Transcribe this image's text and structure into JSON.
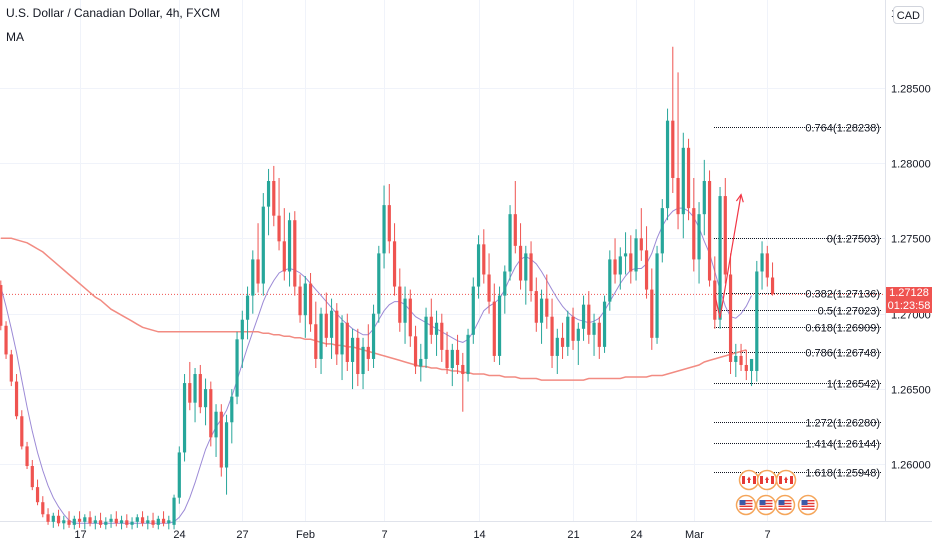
{
  "header": {
    "title": "U.S. Dollar / Canadian Dollar, 4h, FXCM",
    "indicator": "MA",
    "currency": "CAD"
  },
  "current_price": {
    "value": "1.27128",
    "countdown": "01:23:58",
    "color": "#ef5350"
  },
  "colors": {
    "up": "#26a69a",
    "down": "#ef5350",
    "ma_fast": "#9c8ad6",
    "ma_slow": "#f28b82",
    "arrow": "#f23645",
    "grid": "#f0f3fa"
  },
  "chart_data": {
    "type": "candlestick",
    "title": "U.S. Dollar / Canadian Dollar, 4h, FXCM",
    "xlabel": "",
    "ylabel": "",
    "ylim": [
      1.2556,
      1.2906
    ],
    "y_ticks": [
      "1.26000",
      "1.26500",
      "1.27000",
      "1.27500",
      "1.28000",
      "1.28500"
    ],
    "x_ticks": [
      {
        "label": "17",
        "index": 15
      },
      {
        "label": "24",
        "index": 34
      },
      {
        "label": "27",
        "index": 46
      },
      {
        "label": "Feb",
        "index": 58
      },
      {
        "label": "7",
        "index": 73
      },
      {
        "label": "14",
        "index": 91
      },
      {
        "label": "21",
        "index": 109
      },
      {
        "label": "24",
        "index": 121
      },
      {
        "label": "Mar",
        "index": 132
      },
      {
        "label": "7",
        "index": 146
      }
    ],
    "grid": true,
    "candles": [
      [
        1.2719,
        1.2722,
        1.2689,
        1.2692
      ],
      [
        1.2692,
        1.2695,
        1.267,
        1.2673
      ],
      [
        1.2673,
        1.2676,
        1.2652,
        1.2655
      ],
      [
        1.2655,
        1.266,
        1.263,
        1.2632
      ],
      [
        1.2632,
        1.2636,
        1.261,
        1.2612
      ],
      [
        1.2612,
        1.2615,
        1.2597,
        1.2599
      ],
      [
        1.2599,
        1.2603,
        1.2583,
        1.2585
      ],
      [
        1.2585,
        1.259,
        1.2573,
        1.2575
      ],
      [
        1.2575,
        1.2579,
        1.2565,
        1.2567
      ],
      [
        1.2567,
        1.2571,
        1.256,
        1.2562
      ],
      [
        1.2562,
        1.2568,
        1.2558,
        1.2566
      ],
      [
        1.2566,
        1.257,
        1.2559,
        1.2561
      ],
      [
        1.2561,
        1.2566,
        1.2557,
        1.2563
      ],
      [
        1.2563,
        1.2569,
        1.2558,
        1.256
      ],
      [
        1.256,
        1.2566,
        1.2557,
        1.2564
      ],
      [
        1.2564,
        1.2569,
        1.2558,
        1.2562
      ],
      [
        1.2562,
        1.2567,
        1.2557,
        1.2565
      ],
      [
        1.2565,
        1.2569,
        1.2559,
        1.2561
      ],
      [
        1.2561,
        1.2566,
        1.2557,
        1.2563
      ],
      [
        1.2563,
        1.2568,
        1.2558,
        1.256
      ],
      [
        1.256,
        1.2565,
        1.2557,
        1.2562
      ],
      [
        1.2562,
        1.2567,
        1.2558,
        1.2564
      ],
      [
        1.2564,
        1.2569,
        1.2559,
        1.2561
      ],
      [
        1.2561,
        1.2566,
        1.2557,
        1.2563
      ],
      [
        1.2563,
        1.2567,
        1.2558,
        1.256
      ],
      [
        1.256,
        1.2565,
        1.2557,
        1.2562
      ],
      [
        1.2562,
        1.2567,
        1.2558,
        1.2565
      ],
      [
        1.2565,
        1.2569,
        1.2559,
        1.2561
      ],
      [
        1.2561,
        1.2566,
        1.2557,
        1.2563
      ],
      [
        1.2563,
        1.2568,
        1.2558,
        1.256
      ],
      [
        1.256,
        1.2566,
        1.2557,
        1.2564
      ],
      [
        1.2564,
        1.2569,
        1.2559,
        1.2561
      ],
      [
        1.2561,
        1.2566,
        1.2557,
        1.2563
      ],
      [
        1.256,
        1.258,
        1.2557,
        1.2578
      ],
      [
        1.2578,
        1.2612,
        1.2574,
        1.2608
      ],
      [
        1.2608,
        1.266,
        1.2602,
        1.2654
      ],
      [
        1.2654,
        1.2668,
        1.2636,
        1.2641
      ],
      [
        1.2641,
        1.2664,
        1.2628,
        1.266
      ],
      [
        1.266,
        1.2666,
        1.2634,
        1.2638
      ],
      [
        1.2638,
        1.2657,
        1.2626,
        1.265
      ],
      [
        1.265,
        1.2655,
        1.2612,
        1.2618
      ],
      [
        1.2618,
        1.264,
        1.2605,
        1.2635
      ],
      [
        1.2635,
        1.264,
        1.2592,
        1.2598
      ],
      [
        1.2598,
        1.2633,
        1.258,
        1.2628
      ],
      [
        1.2628,
        1.265,
        1.2614,
        1.2645
      ],
      [
        1.2645,
        1.2688,
        1.264,
        1.2683
      ],
      [
        1.2683,
        1.2702,
        1.2664,
        1.2696
      ],
      [
        1.2696,
        1.2718,
        1.2683,
        1.2712
      ],
      [
        1.2712,
        1.2742,
        1.27,
        1.2736
      ],
      [
        1.2736,
        1.276,
        1.2714,
        1.272
      ],
      [
        1.272,
        1.278,
        1.2712,
        1.2771
      ],
      [
        1.2771,
        1.2796,
        1.2752,
        1.2788
      ],
      [
        1.2788,
        1.2798,
        1.2758,
        1.2765
      ],
      [
        1.2765,
        1.279,
        1.2742,
        1.2748
      ],
      [
        1.2748,
        1.277,
        1.2722,
        1.2728
      ],
      [
        1.2728,
        1.2767,
        1.2718,
        1.2762
      ],
      [
        1.2762,
        1.2768,
        1.2712,
        1.2718
      ],
      [
        1.2718,
        1.2726,
        1.2694,
        1.2699
      ],
      [
        1.2699,
        1.2725,
        1.2684,
        1.272
      ],
      [
        1.272,
        1.2727,
        1.2688,
        1.2693
      ],
      [
        1.2693,
        1.2708,
        1.2664,
        1.267
      ],
      [
        1.267,
        1.2704,
        1.266,
        1.27
      ],
      [
        1.27,
        1.2714,
        1.2678,
        1.2684
      ],
      [
        1.2684,
        1.271,
        1.267,
        1.2702
      ],
      [
        1.2702,
        1.2707,
        1.2666,
        1.2673
      ],
      [
        1.2673,
        1.2699,
        1.2656,
        1.2694
      ],
      [
        1.2694,
        1.27,
        1.2662,
        1.2668
      ],
      [
        1.2668,
        1.269,
        1.265,
        1.2684
      ],
      [
        1.2684,
        1.269,
        1.2652,
        1.266
      ],
      [
        1.266,
        1.2684,
        1.265,
        1.2678
      ],
      [
        1.2678,
        1.2693,
        1.2662,
        1.267
      ],
      [
        1.267,
        1.2706,
        1.2664,
        1.27
      ],
      [
        1.27,
        1.2745,
        1.2694,
        1.274
      ],
      [
        1.274,
        1.2785,
        1.273,
        1.2772
      ],
      [
        1.2772,
        1.2786,
        1.274,
        1.2748
      ],
      [
        1.2748,
        1.276,
        1.2712,
        1.2718
      ],
      [
        1.2718,
        1.273,
        1.2688,
        1.2694
      ],
      [
        1.2694,
        1.2718,
        1.268,
        1.271
      ],
      [
        1.271,
        1.2716,
        1.2678,
        1.2685
      ],
      [
        1.2685,
        1.2692,
        1.266,
        1.2665
      ],
      [
        1.2665,
        1.268,
        1.2655,
        1.267
      ],
      [
        1.267,
        1.2704,
        1.2664,
        1.2698
      ],
      [
        1.2698,
        1.271,
        1.268,
        1.2686
      ],
      [
        1.2686,
        1.2702,
        1.2672,
        1.2694
      ],
      [
        1.2694,
        1.27,
        1.2668,
        1.2676
      ],
      [
        1.2676,
        1.2688,
        1.266,
        1.2664
      ],
      [
        1.2664,
        1.268,
        1.2652,
        1.2676
      ],
      [
        1.2676,
        1.2686,
        1.266,
        1.2666
      ],
      [
        1.2666,
        1.2674,
        1.2635,
        1.266
      ],
      [
        1.266,
        1.269,
        1.2655,
        1.2686
      ],
      [
        1.2686,
        1.2724,
        1.268,
        1.2718
      ],
      [
        1.2718,
        1.2752,
        1.271,
        1.2746
      ],
      [
        1.2746,
        1.2756,
        1.272,
        1.2726
      ],
      [
        1.2726,
        1.274,
        1.27,
        1.2708
      ],
      [
        1.2708,
        1.272,
        1.2668,
        1.2672
      ],
      [
        1.2672,
        1.2718,
        1.2666,
        1.2712
      ],
      [
        1.2712,
        1.2732,
        1.27,
        1.2728
      ],
      [
        1.2728,
        1.2772,
        1.2722,
        1.2766
      ],
      [
        1.2766,
        1.2788,
        1.274,
        1.2745
      ],
      [
        1.2745,
        1.276,
        1.2716,
        1.2722
      ],
      [
        1.2722,
        1.2745,
        1.2706,
        1.274
      ],
      [
        1.274,
        1.2748,
        1.2708,
        1.2715
      ],
      [
        1.2715,
        1.2724,
        1.2688,
        1.2694
      ],
      [
        1.2694,
        1.2716,
        1.268,
        1.271
      ],
      [
        1.271,
        1.2726,
        1.269,
        1.2698
      ],
      [
        1.2698,
        1.271,
        1.2664,
        1.2672
      ],
      [
        1.2672,
        1.269,
        1.266,
        1.2684
      ],
      [
        1.2684,
        1.2694,
        1.267,
        1.2678
      ],
      [
        1.2678,
        1.2702,
        1.2672,
        1.2698
      ],
      [
        1.2698,
        1.2704,
        1.2676,
        1.2682
      ],
      [
        1.2682,
        1.2694,
        1.2666,
        1.269
      ],
      [
        1.269,
        1.2712,
        1.2682,
        1.2706
      ],
      [
        1.2706,
        1.2715,
        1.268,
        1.2686
      ],
      [
        1.2686,
        1.27,
        1.2672,
        1.2694
      ],
      [
        1.2694,
        1.2698,
        1.267,
        1.2678
      ],
      [
        1.2678,
        1.2712,
        1.2674,
        1.2708
      ],
      [
        1.2708,
        1.2742,
        1.2702,
        1.2736
      ],
      [
        1.2736,
        1.275,
        1.272,
        1.2726
      ],
      [
        1.2726,
        1.2744,
        1.2716,
        1.2738
      ],
      [
        1.2738,
        1.2754,
        1.2726,
        1.274
      ],
      [
        1.274,
        1.2752,
        1.272,
        1.2728
      ],
      [
        1.2728,
        1.2756,
        1.2722,
        1.275
      ],
      [
        1.275,
        1.277,
        1.2735,
        1.2742
      ],
      [
        1.2742,
        1.2758,
        1.271,
        1.2716
      ],
      [
        1.2716,
        1.273,
        1.2676,
        1.2684
      ],
      [
        1.2684,
        1.2745,
        1.268,
        1.274
      ],
      [
        1.274,
        1.2776,
        1.2734,
        1.277
      ],
      [
        1.277,
        1.2836,
        1.2762,
        1.2828
      ],
      [
        1.2828,
        1.2877,
        1.278,
        1.279
      ],
      [
        1.279,
        1.286,
        1.2756,
        1.2766
      ],
      [
        1.2766,
        1.282,
        1.275,
        1.281
      ],
      [
        1.281,
        1.2816,
        1.2762,
        1.277
      ],
      [
        1.277,
        1.279,
        1.2728,
        1.2736
      ],
      [
        1.2736,
        1.2774,
        1.272,
        1.2766
      ],
      [
        1.2766,
        1.2802,
        1.2752,
        1.2788
      ],
      [
        1.2788,
        1.2795,
        1.2718,
        1.2722
      ],
      [
        1.2722,
        1.2738,
        1.269,
        1.2696
      ],
      [
        1.2696,
        1.2784,
        1.269,
        1.2778
      ],
      [
        1.2778,
        1.279,
        1.272,
        1.2726
      ],
      [
        1.2726,
        1.274,
        1.266,
        1.2668
      ],
      [
        1.2668,
        1.268,
        1.2658,
        1.2672
      ],
      [
        1.2672,
        1.268,
        1.2662,
        1.2666
      ],
      [
        1.2666,
        1.2676,
        1.2656,
        1.2662
      ],
      [
        1.2662,
        1.2668,
        1.2652,
        1.267
      ],
      [
        1.2662,
        1.2735,
        1.2655,
        1.2728
      ],
      [
        1.2728,
        1.2748,
        1.2716,
        1.274
      ],
      [
        1.274,
        1.2745,
        1.2718,
        1.2724
      ],
      [
        1.2724,
        1.2734,
        1.2712,
        1.2713
      ]
    ],
    "series": [
      {
        "name": "MA",
        "color": "#9c8ad6",
        "values": [
          1.2718,
          1.2705,
          1.269,
          1.2674,
          1.2656,
          1.2638,
          1.2622,
          1.2608,
          1.2596,
          1.2586,
          1.2578,
          1.2572,
          1.2567,
          1.2563,
          1.2561,
          1.2561,
          1.2561,
          1.2561,
          1.2561,
          1.2561,
          1.2561,
          1.2561,
          1.2561,
          1.2561,
          1.2561,
          1.2561,
          1.2561,
          1.2561,
          1.2561,
          1.2561,
          1.2561,
          1.2561,
          1.2561,
          1.2562,
          1.2565,
          1.257,
          1.2578,
          1.2588,
          1.2599,
          1.261,
          1.2618,
          1.2625,
          1.263,
          1.2636,
          1.2645,
          1.2656,
          1.2667,
          1.2678,
          1.2688,
          1.2698,
          1.2708,
          1.2716,
          1.2722,
          1.2727,
          1.2729,
          1.273,
          1.2729,
          1.2727,
          1.2724,
          1.272,
          1.2716,
          1.2712,
          1.2708,
          1.2704,
          1.27,
          1.2696,
          1.2693,
          1.269,
          1.2688,
          1.2686,
          1.2686,
          1.269,
          1.2696,
          1.2702,
          1.2706,
          1.2708,
          1.2708,
          1.2706,
          1.2702,
          1.2698,
          1.2696,
          1.2694,
          1.2692,
          1.269,
          1.2688,
          1.2686,
          1.2684,
          1.2682,
          1.2681,
          1.2683,
          1.2688,
          1.2695,
          1.2702,
          1.2705,
          1.2707,
          1.271,
          1.2716,
          1.2724,
          1.2731,
          1.2736,
          1.2738,
          1.2736,
          1.2733,
          1.2728,
          1.2722,
          1.2716,
          1.271,
          1.2705,
          1.2701,
          1.2698,
          1.2696,
          1.2695,
          1.2694,
          1.2695,
          1.2697,
          1.2702,
          1.2708,
          1.2714,
          1.272,
          1.2725,
          1.2729,
          1.273,
          1.273,
          1.2733,
          1.274,
          1.275,
          1.2758,
          1.2764,
          1.2768,
          1.277,
          1.277,
          1.2768,
          1.2764,
          1.2757,
          1.2748,
          1.274,
          1.2728,
          1.2716,
          1.2705,
          1.2698,
          1.2697,
          1.27,
          1.2705,
          1.2712
        ]
      },
      {
        "name": "MA",
        "color": "#f28b82",
        "values": [
          1.275,
          1.275,
          1.275,
          1.2749,
          1.2748,
          1.2747,
          1.2745,
          1.2743,
          1.2741,
          1.2738,
          1.2735,
          1.2732,
          1.2729,
          1.2726,
          1.2723,
          1.272,
          1.2717,
          1.2714,
          1.2711,
          1.2709,
          1.2706,
          1.2703,
          1.2701,
          1.2699,
          1.2697,
          1.2695,
          1.2693,
          1.2691,
          1.269,
          1.2689,
          1.2688,
          1.2688,
          1.2688,
          1.2688,
          1.2688,
          1.2688,
          1.2688,
          1.2688,
          1.2688,
          1.2688,
          1.2688,
          1.2688,
          1.2688,
          1.2688,
          1.2688,
          1.2688,
          1.2688,
          1.2688,
          1.2688,
          1.2688,
          1.2687,
          1.2687,
          1.2686,
          1.2686,
          1.2685,
          1.2685,
          1.2684,
          1.2684,
          1.2683,
          1.2683,
          1.2682,
          1.2681,
          1.268,
          1.268,
          1.2679,
          1.2679,
          1.2678,
          1.2678,
          1.2677,
          1.2676,
          1.2675,
          1.2674,
          1.2673,
          1.2672,
          1.2671,
          1.267,
          1.2669,
          1.2668,
          1.2667,
          1.2666,
          1.2665,
          1.2665,
          1.2664,
          1.2664,
          1.2663,
          1.2663,
          1.2662,
          1.2662,
          1.2661,
          1.2661,
          1.266,
          1.266,
          1.266,
          1.2659,
          1.2659,
          1.2659,
          1.2658,
          1.2658,
          1.2658,
          1.2657,
          1.2657,
          1.2657,
          1.2657,
          1.2656,
          1.2656,
          1.2656,
          1.2656,
          1.2656,
          1.2656,
          1.2656,
          1.2656,
          1.2656,
          1.2657,
          1.2657,
          1.2657,
          1.2657,
          1.2657,
          1.2657,
          1.2657,
          1.2658,
          1.2658,
          1.2658,
          1.2658,
          1.2658,
          1.2659,
          1.2659,
          1.2659,
          1.266,
          1.2661,
          1.2662,
          1.2663,
          1.2664,
          1.2665,
          1.2666,
          1.2668,
          1.2669,
          1.267,
          1.2671,
          1.2672,
          1.2673,
          1.2674,
          1.2675,
          1.2676
        ]
      }
    ],
    "fib_levels": [
      {
        "label": "0.764(1.28238)",
        "value": 1.28238
      },
      {
        "label": "0(1.27503)",
        "value": 1.27503
      },
      {
        "label": "0.382(1.27136)",
        "value": 1.27136
      },
      {
        "label": "0.5(1.27023)",
        "value": 1.27023
      },
      {
        "label": "0.618(1.26909)",
        "value": 1.26909
      },
      {
        "label": "0.786(1.26748)",
        "value": 1.26748
      },
      {
        "label": "1(1.26542)",
        "value": 1.26542
      },
      {
        "label": "1.272(1.26280)",
        "value": 1.2628
      },
      {
        "label": "1.414(1.26144)",
        "value": 1.26144
      },
      {
        "label": "1.618(1.25948)",
        "value": 1.25948
      }
    ],
    "projection": [
      {
        "index": 136,
        "value": 1.2713
      },
      {
        "index": 137,
        "value": 1.2697
      },
      {
        "index": 141,
        "value": 1.2779
      }
    ],
    "event_icons": {
      "row1": [
        "ca-flag-icon",
        "ca-flag-icon",
        "ca-flag-icon"
      ],
      "row2": [
        "us-flag-icon",
        "us-flag-icon",
        "us-flag-icon",
        "us-flag-icon"
      ]
    }
  }
}
